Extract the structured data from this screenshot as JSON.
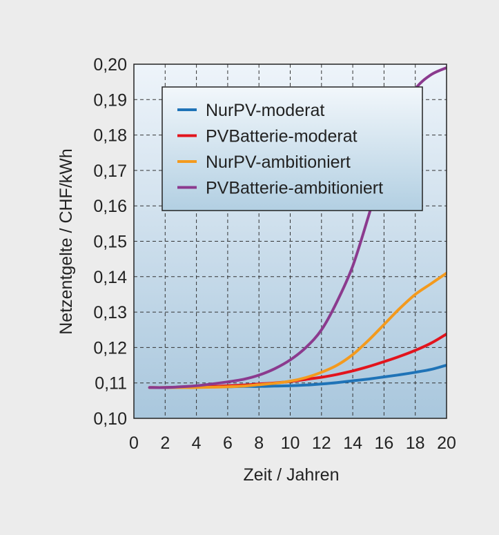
{
  "colors": {
    "background": "#ececec",
    "plot_top": "#eef4fa",
    "plot_bottom": "#a9c7dd",
    "NurPV-moderat": "#1f73b7",
    "PVBatterie-moderat": "#e2141d",
    "NurPV-ambitioniert": "#f39a1e",
    "PVBatterie-ambitioniert": "#8b3a8e"
  },
  "chart_data": {
    "type": "line",
    "xlabel": "Zeit / Jahren",
    "ylabel": "Netzentgelte / CHF/kWh",
    "xlim": [
      0,
      20
    ],
    "ylim": [
      0.1,
      0.2
    ],
    "xticks": [
      0,
      2,
      4,
      6,
      8,
      10,
      12,
      14,
      16,
      18,
      20
    ],
    "xtick_labels": [
      "0",
      "2",
      "4",
      "6",
      "8",
      "10",
      "12",
      "14",
      "16",
      "18",
      "20"
    ],
    "yticks": [
      0.1,
      0.11,
      0.12,
      0.13,
      0.14,
      0.15,
      0.16,
      0.17,
      0.18,
      0.19,
      0.2
    ],
    "ytick_labels": [
      "0,10",
      "0,11",
      "0,12",
      "0,13",
      "0,14",
      "0,15",
      "0,16",
      "0,17",
      "0,18",
      "0,19",
      "0,20"
    ],
    "grid": true,
    "legend_position": "top",
    "x": [
      1,
      2,
      3,
      4,
      5,
      6,
      7,
      8,
      9,
      10,
      11,
      12,
      13,
      14,
      15,
      16,
      17,
      18,
      19,
      20
    ],
    "series": [
      {
        "name": "NurPV-moderat",
        "values": [
          0.1087,
          0.1087,
          0.1088,
          0.1088,
          0.1089,
          0.1089,
          0.109,
          0.109,
          0.1091,
          0.1092,
          0.1094,
          0.1097,
          0.1101,
          0.1106,
          0.1111,
          0.1117,
          0.1123,
          0.113,
          0.1138,
          0.115
        ]
      },
      {
        "name": "PVBatterie-moderat",
        "values": [
          0.1087,
          0.1087,
          0.1088,
          0.1089,
          0.109,
          0.1092,
          0.1094,
          0.1097,
          0.11,
          0.1104,
          0.111,
          0.1116,
          0.1124,
          0.1134,
          0.1146,
          0.116,
          0.1175,
          0.1192,
          0.1212,
          0.1238
        ]
      },
      {
        "name": "NurPV-ambitioniert",
        "values": [
          0.1087,
          0.1087,
          0.1087,
          0.1087,
          0.1088,
          0.1089,
          0.1091,
          0.1095,
          0.1099,
          0.1105,
          0.1115,
          0.113,
          0.115,
          0.118,
          0.122,
          0.1265,
          0.131,
          0.135,
          0.138,
          0.141
        ]
      },
      {
        "name": "PVBatterie-ambitioniert",
        "values": [
          0.1087,
          0.1087,
          0.1089,
          0.1092,
          0.1097,
          0.1103,
          0.111,
          0.1122,
          0.114,
          0.1165,
          0.12,
          0.125,
          0.133,
          0.143,
          0.157,
          0.172,
          0.185,
          0.193,
          0.197,
          0.199
        ]
      }
    ]
  }
}
